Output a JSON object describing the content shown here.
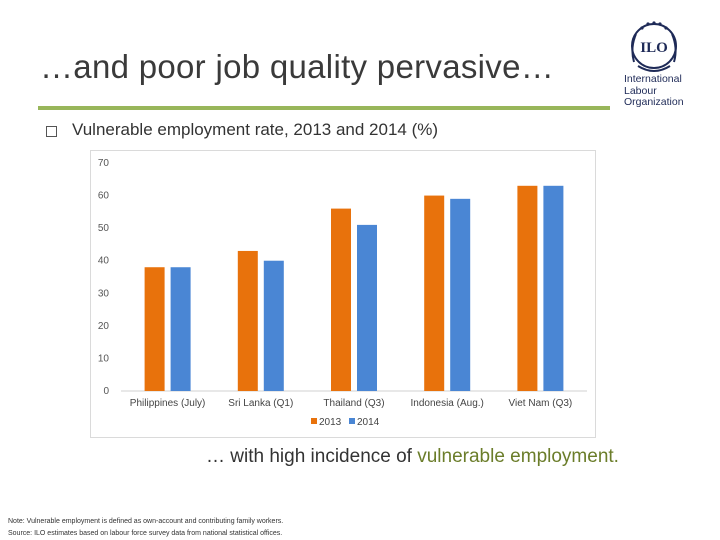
{
  "slide": {
    "title": "…and poor job quality pervasive…",
    "subtitle": "Vulnerable employment rate, 2013 and 2014 (%)",
    "tagline_pre": "… with high incidence of ",
    "tagline_highlight": "vulnerable employment.",
    "note": "Note: Vulnerable employment is defined as own-account and contributing family workers.",
    "source": "Source: ILO estimates based on labour force survey data from national statistical offices.",
    "logo": {
      "emblem": "ILO",
      "line1": "International",
      "line2": "Labour",
      "line3": "Organization"
    }
  },
  "colors": {
    "accent_rule": "#98b65a",
    "highlight_text": "#6b7d2a",
    "series_2013": "#e8720c",
    "series_2014": "#4a86d4",
    "logo_blue": "#1e2a57"
  },
  "chart_data": {
    "type": "bar",
    "categories": [
      "Philippines (July)",
      "Sri Lanka (Q1)",
      "Thailand (Q3)",
      "Indonesia (Aug.)",
      "Viet Nam (Q3)"
    ],
    "series": [
      {
        "name": "2013",
        "values": [
          38,
          43,
          56,
          60,
          63
        ]
      },
      {
        "name": "2014",
        "values": [
          38,
          40,
          51,
          59,
          63
        ]
      }
    ],
    "ylim": [
      0,
      70
    ],
    "yticks": [
      0,
      10,
      20,
      30,
      40,
      50,
      60,
      70
    ],
    "grid": false,
    "legend_position": "bottom"
  }
}
